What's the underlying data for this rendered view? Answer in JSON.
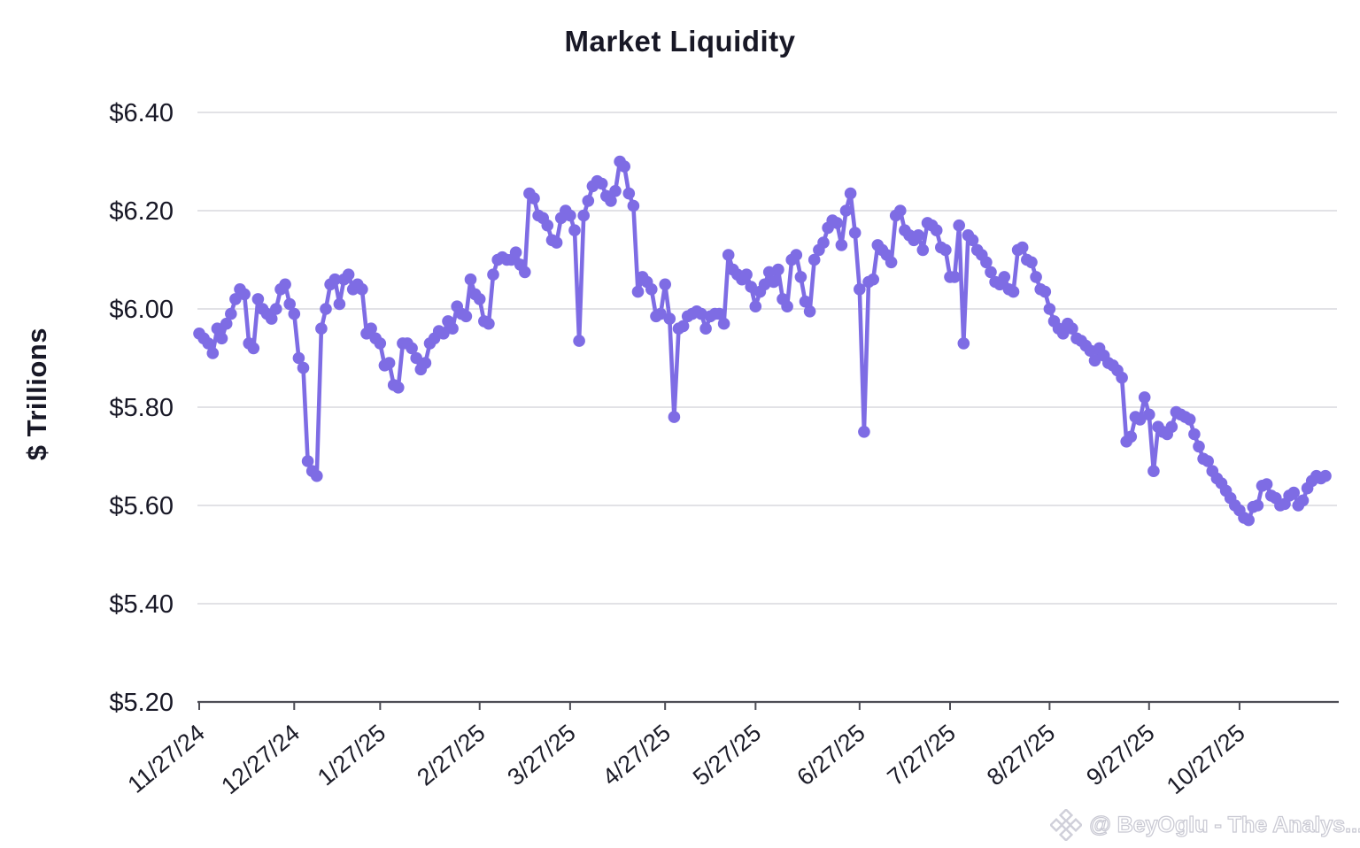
{
  "title": "Market Liquidity",
  "y_axis": {
    "label": "$ Trillions",
    "ticks": [
      "$6.40",
      "$6.20",
      "$6.00",
      "$5.80",
      "$5.60",
      "$5.40",
      "$5.20"
    ]
  },
  "x_axis": {
    "tick_labels": [
      "11/27/24",
      "12/27/24",
      "1/27/25",
      "2/27/25",
      "3/27/25",
      "4/27/25",
      "5/27/25",
      "6/27/25",
      "7/27/25",
      "8/27/25",
      "9/27/25",
      "10/27/25"
    ],
    "tick_indices": [
      0,
      21,
      40,
      62,
      82,
      103,
      123,
      146,
      166,
      188,
      210,
      230
    ]
  },
  "watermark": {
    "icon": "diamond-logo-icon",
    "text": "@ BeyOglu - The Analys..."
  },
  "colors": {
    "line": "#7e6ce4",
    "grid": "#d9d9de",
    "axis": "#4d4d55",
    "text": "#181826",
    "watermark": "#cfcfd9",
    "background": "#ffffff"
  },
  "chart_data": {
    "type": "line",
    "title": "Market Liquidity",
    "xlabel": "",
    "ylabel": "$ Trillions",
    "ylim": [
      5.2,
      6.4
    ],
    "yticks": [
      6.4,
      6.2,
      6.0,
      5.8,
      5.6,
      5.4,
      5.2
    ],
    "grid": "horizontal",
    "legend": false,
    "marker": "circle",
    "series": [
      {
        "name": "Market Liquidity",
        "x": [
          "11/27/24",
          "11/28/24",
          "11/29/24",
          "12/2/24",
          "12/3/24",
          "12/4/24",
          "12/5/24",
          "12/6/24",
          "12/9/24",
          "12/10/24",
          "12/11/24",
          "12/12/24",
          "12/13/24",
          "12/16/24",
          "12/17/24",
          "12/18/24",
          "12/19/24",
          "12/20/24",
          "12/23/24",
          "12/24/24",
          "12/26/24",
          "12/27/24",
          "12/30/24",
          "12/31/24",
          "1/2/25",
          "1/3/25",
          "1/6/25",
          "1/7/25",
          "1/8/25",
          "1/9/25",
          "1/10/25",
          "1/13/25",
          "1/14/25",
          "1/15/25",
          "1/16/25",
          "1/17/25",
          "1/21/25",
          "1/22/25",
          "1/23/25",
          "1/24/25",
          "1/27/25",
          "1/28/25",
          "1/29/25",
          "1/30/25",
          "1/31/25",
          "2/3/25",
          "2/4/25",
          "2/5/25",
          "2/6/25",
          "2/7/25",
          "2/10/25",
          "2/11/25",
          "2/12/25",
          "2/13/25",
          "2/14/25",
          "2/18/25",
          "2/19/25",
          "2/20/25",
          "2/21/25",
          "2/24/25",
          "2/25/25",
          "2/26/25",
          "2/27/25",
          "2/28/25",
          "3/3/25",
          "3/4/25",
          "3/5/25",
          "3/6/25",
          "3/7/25",
          "3/10/25",
          "3/11/25",
          "3/12/25",
          "3/13/25",
          "3/14/25",
          "3/17/25",
          "3/18/25",
          "3/19/25",
          "3/20/25",
          "3/21/25",
          "3/24/25",
          "3/25/25",
          "3/26/25",
          "3/27/25",
          "3/28/25",
          "3/31/25",
          "4/1/25",
          "4/2/25",
          "4/3/25",
          "4/4/25",
          "4/7/25",
          "4/8/25",
          "4/9/25",
          "4/10/25",
          "4/11/25",
          "4/14/25",
          "4/15/25",
          "4/16/25",
          "4/17/25",
          "4/21/25",
          "4/22/25",
          "4/23/25",
          "4/24/25",
          "4/25/25",
          "4/28/25",
          "4/29/25",
          "4/30/25",
          "5/1/25",
          "5/2/25",
          "5/5/25",
          "5/6/25",
          "5/7/25",
          "5/8/25",
          "5/9/25",
          "5/12/25",
          "5/13/25",
          "5/14/25",
          "5/15/25",
          "5/16/25",
          "5/19/25",
          "5/20/25",
          "5/21/25",
          "5/22/25",
          "5/23/25",
          "5/27/25",
          "5/28/25",
          "5/29/25",
          "5/30/25",
          "6/2/25",
          "6/3/25",
          "6/4/25",
          "6/5/25",
          "6/6/25",
          "6/9/25",
          "6/10/25",
          "6/11/25",
          "6/12/25",
          "6/13/25",
          "6/16/25",
          "6/17/25",
          "6/18/25",
          "6/19/25",
          "6/20/25",
          "6/23/25",
          "6/24/25",
          "6/25/25",
          "6/26/25",
          "6/27/25",
          "6/30/25",
          "7/1/25",
          "7/2/25",
          "7/3/25",
          "7/7/25",
          "7/8/25",
          "7/9/25",
          "7/10/25",
          "7/11/25",
          "7/14/25",
          "7/15/25",
          "7/16/25",
          "7/17/25",
          "7/18/25",
          "7/21/25",
          "7/22/25",
          "7/23/25",
          "7/24/25",
          "7/25/25",
          "7/28/25",
          "7/29/25",
          "7/30/25",
          "7/31/25",
          "8/1/25",
          "8/4/25",
          "8/5/25",
          "8/6/25",
          "8/7/25",
          "8/8/25",
          "8/11/25",
          "8/12/25",
          "8/13/25",
          "8/14/25",
          "8/15/25",
          "8/18/25",
          "8/19/25",
          "8/20/25",
          "8/21/25",
          "8/22/25",
          "8/25/25",
          "8/26/25",
          "8/27/25",
          "8/28/25",
          "8/29/25",
          "9/2/25",
          "9/3/25",
          "9/4/25",
          "9/5/25",
          "9/8/25",
          "9/9/25",
          "9/10/25",
          "9/11/25",
          "9/12/25",
          "9/15/25",
          "9/16/25",
          "9/17/25",
          "9/18/25",
          "9/19/25",
          "9/22/25",
          "9/23/25",
          "9/24/25",
          "9/25/25",
          "9/26/25",
          "9/29/25",
          "9/30/25",
          "10/1/25",
          "10/2/25",
          "10/3/25",
          "10/6/25",
          "10/7/25",
          "10/8/25",
          "10/9/25",
          "10/10/25",
          "10/13/25",
          "10/14/25",
          "10/15/25",
          "10/16/25",
          "10/17/25",
          "10/20/25",
          "10/21/25",
          "10/22/25",
          "10/23/25",
          "10/24/25",
          "10/27/25",
          "10/28/25",
          "10/29/25",
          "10/30/25",
          "10/31/25",
          "11/3/25",
          "11/4/25",
          "11/5/25",
          "11/6/25",
          "11/7/25",
          "11/10/25",
          "11/11/25",
          "11/12/25",
          "11/13/25",
          "11/14/25",
          "11/17/25",
          "11/18/25",
          "11/19/25",
          "11/20/25",
          "11/21/25"
        ],
        "values": [
          5.95,
          5.94,
          5.93,
          5.91,
          5.96,
          5.94,
          5.97,
          5.99,
          6.02,
          6.04,
          6.03,
          5.93,
          5.92,
          6.02,
          6.0,
          5.99,
          5.98,
          6.0,
          6.04,
          6.05,
          6.01,
          5.99,
          5.9,
          5.88,
          5.69,
          5.67,
          5.66,
          5.96,
          6.0,
          6.05,
          6.06,
          6.01,
          6.06,
          6.07,
          6.04,
          6.05,
          6.04,
          5.95,
          5.96,
          5.94,
          5.93,
          5.885,
          5.89,
          5.845,
          5.84,
          5.93,
          5.93,
          5.92,
          5.9,
          5.877,
          5.89,
          5.93,
          5.94,
          5.955,
          5.95,
          5.975,
          5.96,
          6.005,
          5.99,
          5.985,
          6.06,
          6.03,
          6.02,
          5.975,
          5.97,
          6.07,
          6.1,
          6.105,
          6.1,
          6.1,
          6.115,
          6.09,
          6.075,
          6.235,
          6.225,
          6.19,
          6.185,
          6.17,
          6.14,
          6.135,
          6.185,
          6.2,
          6.19,
          6.16,
          5.935,
          6.19,
          6.22,
          6.25,
          6.26,
          6.255,
          6.23,
          6.22,
          6.24,
          6.3,
          6.29,
          6.235,
          6.21,
          6.035,
          6.065,
          6.055,
          6.04,
          5.985,
          5.99,
          6.05,
          5.98,
          5.78,
          5.96,
          5.965,
          5.985,
          5.99,
          5.995,
          5.99,
          5.96,
          5.985,
          5.99,
          5.99,
          5.97,
          6.11,
          6.08,
          6.07,
          6.06,
          6.07,
          6.045,
          6.005,
          6.035,
          6.05,
          6.075,
          6.055,
          6.08,
          6.02,
          6.005,
          6.1,
          6.11,
          6.065,
          6.015,
          5.995,
          6.1,
          6.12,
          6.135,
          6.165,
          6.18,
          6.175,
          6.13,
          6.2,
          6.235,
          6.155,
          6.04,
          5.75,
          6.055,
          6.06,
          6.13,
          6.12,
          6.11,
          6.095,
          6.19,
          6.2,
          6.16,
          6.15,
          6.14,
          6.15,
          6.12,
          6.175,
          6.17,
          6.16,
          6.125,
          6.12,
          6.065,
          6.065,
          6.17,
          5.93,
          6.15,
          6.14,
          6.12,
          6.11,
          6.095,
          6.075,
          6.055,
          6.05,
          6.065,
          6.04,
          6.035,
          6.12,
          6.125,
          6.1,
          6.095,
          6.065,
          6.04,
          6.035,
          6.0,
          5.975,
          5.96,
          5.95,
          5.97,
          5.96,
          5.94,
          5.935,
          5.925,
          5.915,
          5.895,
          5.92,
          5.905,
          5.89,
          5.885,
          5.875,
          5.86,
          5.73,
          5.74,
          5.78,
          5.775,
          5.82,
          5.785,
          5.67,
          5.76,
          5.75,
          5.745,
          5.76,
          5.79,
          5.785,
          5.78,
          5.775,
          5.745,
          5.72,
          5.695,
          5.69,
          5.67,
          5.655,
          5.645,
          5.63,
          5.615,
          5.6,
          5.59,
          5.575,
          5.57,
          5.597,
          5.6,
          5.64,
          5.643,
          5.62,
          5.615,
          5.6,
          5.603,
          5.62,
          5.626,
          5.6,
          5.61,
          5.635,
          5.65,
          5.66,
          5.655,
          5.66
        ]
      }
    ]
  }
}
